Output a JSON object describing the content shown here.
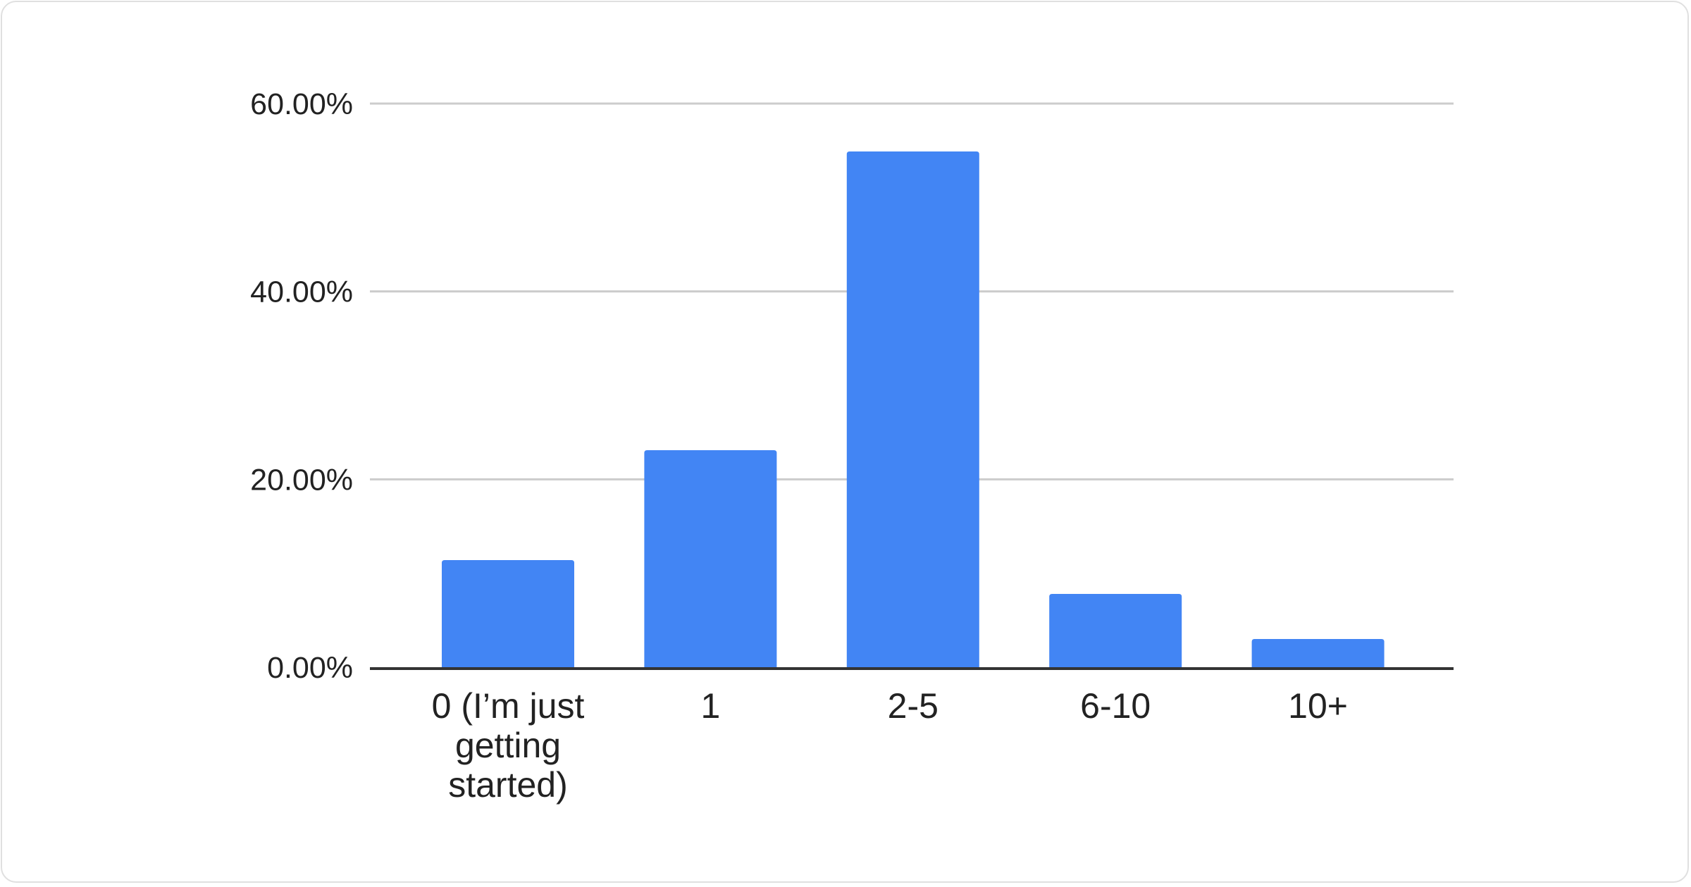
{
  "chart_data": {
    "type": "bar",
    "title": "",
    "xlabel": "",
    "ylabel": "",
    "categories": [
      [
        "0 (I’m just",
        "getting",
        "started)"
      ],
      [
        "1"
      ],
      [
        "2-5"
      ],
      [
        "6-10"
      ],
      [
        "10+"
      ]
    ],
    "values": [
      11.4,
      23.1,
      54.9,
      7.8,
      3.0
    ],
    "ylim": [
      0,
      60
    ],
    "yticks": [
      0,
      20,
      40,
      60
    ],
    "ytick_labels": [
      "0.00%",
      "20.00%",
      "40.00%",
      "60.00%"
    ],
    "grid": true,
    "legend": "none",
    "bar_color": "#4285f4",
    "grid_color": "#cccccc",
    "axis_color": "#333333"
  }
}
